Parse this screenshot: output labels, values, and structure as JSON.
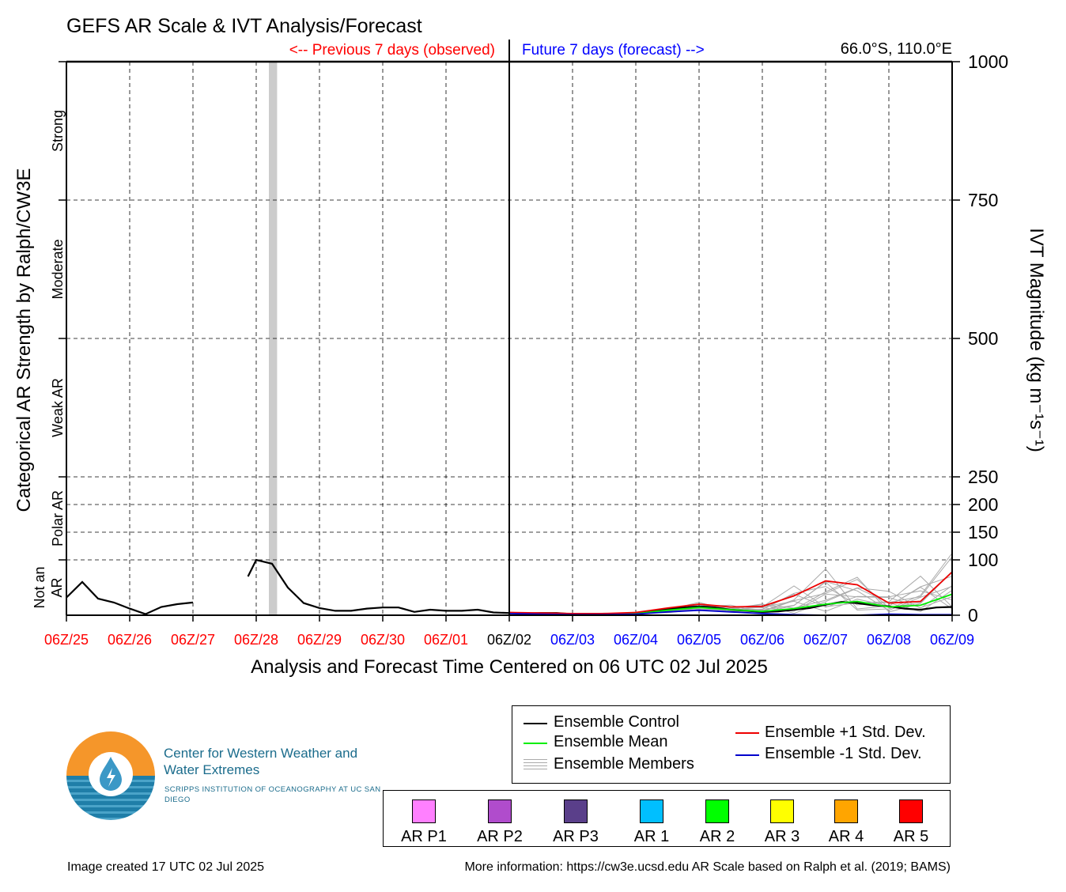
{
  "title": "GEFS AR Scale & IVT Analysis/Forecast",
  "header": {
    "previous_label": "<-- Previous 7 days (observed)",
    "future_label": "Future 7 days (forecast) -->",
    "location": "66.0°S, 110.0°E"
  },
  "colors": {
    "observed": "#ff0000",
    "forecast": "#0000ff",
    "control": "#000000",
    "mean": "#00ee00",
    "plus_std": "#ee0000",
    "minus_std": "#0000cc",
    "members": "#aaaaaa",
    "ar_highlight": "#cccccc"
  },
  "chart_data": {
    "type": "line",
    "title": "GEFS AR Scale & IVT Analysis/Forecast",
    "xlabel": "Analysis and Forecast Time Centered on 06 UTC 02 Jul 2025",
    "ylabel": "IVT Magnitude (kg m⁻¹s⁻¹)",
    "ylabel_left": "Categorical AR Strength by Ralph/CW3E",
    "x_unit": "days relative to 06Z/02 (hours / 24)",
    "xlim": [
      -7,
      7
    ],
    "ylim": [
      0,
      1000
    ],
    "grid": true,
    "x_ticks": [
      {
        "x": -7,
        "label": "06Z/25",
        "kind": "observed"
      },
      {
        "x": -6,
        "label": "06Z/26",
        "kind": "observed"
      },
      {
        "x": -5,
        "label": "06Z/27",
        "kind": "observed"
      },
      {
        "x": -4,
        "label": "06Z/28",
        "kind": "observed"
      },
      {
        "x": -3,
        "label": "06Z/29",
        "kind": "observed"
      },
      {
        "x": -2,
        "label": "06Z/30",
        "kind": "observed"
      },
      {
        "x": -1,
        "label": "06Z/01",
        "kind": "observed"
      },
      {
        "x": 0,
        "label": "06Z/02",
        "kind": "now"
      },
      {
        "x": 1,
        "label": "06Z/03",
        "kind": "forecast"
      },
      {
        "x": 2,
        "label": "06Z/04",
        "kind": "forecast"
      },
      {
        "x": 3,
        "label": "06Z/05",
        "kind": "forecast"
      },
      {
        "x": 4,
        "label": "06Z/06",
        "kind": "forecast"
      },
      {
        "x": 5,
        "label": "06Z/07",
        "kind": "forecast"
      },
      {
        "x": 6,
        "label": "06Z/08",
        "kind": "forecast"
      },
      {
        "x": 7,
        "label": "06Z/09",
        "kind": "forecast"
      }
    ],
    "y_ticks": [
      0,
      100,
      150,
      200,
      250,
      500,
      750,
      1000
    ],
    "categories": [
      {
        "label": "Not an\nAR",
        "from": 0,
        "to": 100
      },
      {
        "label": "Polar AR",
        "from": 100,
        "to": 250
      },
      {
        "label": "Weak AR",
        "from": 250,
        "to": 500
      },
      {
        "label": "Moderate",
        "from": 500,
        "to": 750
      },
      {
        "label": "Strong",
        "from": 750,
        "to": 1000
      }
    ],
    "ar_highlight": {
      "x0": -3.8,
      "x1": -3.67
    },
    "series": [
      {
        "name": "Ensemble Control",
        "key": "control",
        "segments": [
          [
            [
              -7,
              32
            ],
            [
              -6.75,
              60
            ],
            [
              -6.5,
              30
            ],
            [
              -6.25,
              23
            ],
            [
              -6,
              12
            ],
            [
              -5.75,
              2
            ],
            [
              -5.5,
              15
            ],
            [
              -5.25,
              20
            ],
            [
              -5,
              23
            ]
          ],
          [
            [
              -4.13,
              70
            ],
            [
              -4,
              100
            ],
            [
              -3.75,
              93
            ],
            [
              -3.5,
              50
            ],
            [
              -3.25,
              22
            ],
            [
              -3,
              13
            ],
            [
              -2.75,
              8
            ],
            [
              -2.5,
              8
            ],
            [
              -2.25,
              12
            ],
            [
              -2,
              14
            ],
            [
              -1.75,
              14
            ],
            [
              -1.5,
              6
            ],
            [
              -1.25,
              10
            ],
            [
              -1,
              8
            ],
            [
              -0.75,
              8
            ],
            [
              -0.5,
              10
            ],
            [
              -0.25,
              5
            ],
            [
              0,
              4
            ],
            [
              0.25,
              3
            ],
            [
              0.5,
              4
            ],
            [
              0.75,
              4
            ],
            [
              1,
              2
            ],
            [
              1.25,
              1
            ],
            [
              1.5,
              2
            ],
            [
              1.75,
              3
            ],
            [
              2,
              4
            ],
            [
              2.25,
              7
            ],
            [
              2.5,
              11
            ],
            [
              2.75,
              14
            ],
            [
              3,
              16
            ],
            [
              3.25,
              14
            ],
            [
              3.5,
              10
            ],
            [
              3.75,
              8
            ],
            [
              4,
              6
            ],
            [
              4.25,
              7
            ],
            [
              4.5,
              10
            ],
            [
              4.75,
              13
            ],
            [
              5,
              19
            ],
            [
              5.25,
              24
            ],
            [
              5.5,
              22
            ],
            [
              5.75,
              18
            ],
            [
              6,
              16
            ],
            [
              6.25,
              12
            ],
            [
              6.5,
              10
            ],
            [
              6.75,
              14
            ],
            [
              7,
              15
            ]
          ]
        ]
      },
      {
        "name": "Ensemble Mean",
        "key": "mean",
        "segments": [
          [
            [
              0,
              4
            ],
            [
              0.5,
              3
            ],
            [
              1,
              2
            ],
            [
              1.5,
              2
            ],
            [
              2,
              3
            ],
            [
              2.5,
              9
            ],
            [
              3,
              14
            ],
            [
              3.5,
              10
            ],
            [
              4,
              7
            ],
            [
              4.5,
              12
            ],
            [
              5,
              20
            ],
            [
              5.5,
              25
            ],
            [
              6,
              15
            ],
            [
              6.5,
              18
            ],
            [
              7,
              38
            ]
          ]
        ]
      },
      {
        "name": "Ensemble +1 Std. Dev.",
        "key": "plus_std",
        "segments": [
          [
            [
              0,
              5
            ],
            [
              0.5,
              4
            ],
            [
              1,
              3
            ],
            [
              1.5,
              3
            ],
            [
              2,
              5
            ],
            [
              2.5,
              13
            ],
            [
              3,
              20
            ],
            [
              3.5,
              15
            ],
            [
              4,
              16
            ],
            [
              4.5,
              35
            ],
            [
              5,
              62
            ],
            [
              5.5,
              55
            ],
            [
              6,
              22
            ],
            [
              6.5,
              25
            ],
            [
              7,
              78
            ]
          ]
        ]
      },
      {
        "name": "Ensemble -1 Std. Dev.",
        "key": "minus_std",
        "segments": [
          [
            [
              0,
              3
            ],
            [
              0.5,
              2
            ],
            [
              1,
              1
            ],
            [
              1.5,
              1
            ],
            [
              2,
              2
            ],
            [
              2.5,
              6
            ],
            [
              3,
              9
            ],
            [
              3.5,
              6
            ],
            [
              4,
              3
            ],
            [
              4.5,
              1
            ],
            [
              5,
              0
            ],
            [
              5.5,
              0
            ],
            [
              6,
              2
            ],
            [
              6.5,
              1
            ],
            [
              7,
              1
            ]
          ]
        ]
      }
    ],
    "members_envelope": {
      "name": "Ensemble Members",
      "x": [
        0,
        0.5,
        1,
        1.5,
        2,
        2.5,
        3,
        3.5,
        4,
        4.5,
        5,
        5.5,
        6,
        6.5,
        7
      ],
      "low": [
        2,
        1,
        0,
        0,
        1,
        4,
        8,
        6,
        3,
        2,
        4,
        6,
        5,
        4,
        6
      ],
      "high": [
        6,
        5,
        4,
        4,
        6,
        15,
        24,
        20,
        25,
        55,
        95,
        85,
        45,
        80,
        140
      ]
    }
  },
  "legend": {
    "lines": [
      {
        "key": "control",
        "label": "Ensemble Control"
      },
      {
        "key": "mean",
        "label": "Ensemble Mean"
      },
      {
        "key": "members",
        "label": "Ensemble Members"
      },
      {
        "key": "plus_std",
        "label": "Ensemble +1 Std. Dev."
      },
      {
        "key": "minus_std",
        "label": "Ensemble -1 Std. Dev."
      }
    ],
    "ar_categories": [
      {
        "label": "AR P1",
        "color": "#ff80ff"
      },
      {
        "label": "AR P2",
        "color": "#b04ccc"
      },
      {
        "label": "AR P3",
        "color": "#5a3f8a"
      },
      {
        "label": "AR 1",
        "color": "#00bfff"
      },
      {
        "label": "AR 2",
        "color": "#00ff00"
      },
      {
        "label": "AR 3",
        "color": "#ffff00"
      },
      {
        "label": "AR 4",
        "color": "#ffa500"
      },
      {
        "label": "AR 5",
        "color": "#ff0000"
      }
    ]
  },
  "logo": {
    "name": "Center for Western Weather and Water Extremes",
    "sub": "SCRIPPS INSTITUTION OF OCEANOGRAPHY AT UC SAN DIEGO"
  },
  "footer": {
    "created": "Image created 17 UTC 02 Jul 2025",
    "info": "More information: https://cw3e.ucsd.edu AR Scale based on Ralph et al. (2019; BAMS)"
  }
}
